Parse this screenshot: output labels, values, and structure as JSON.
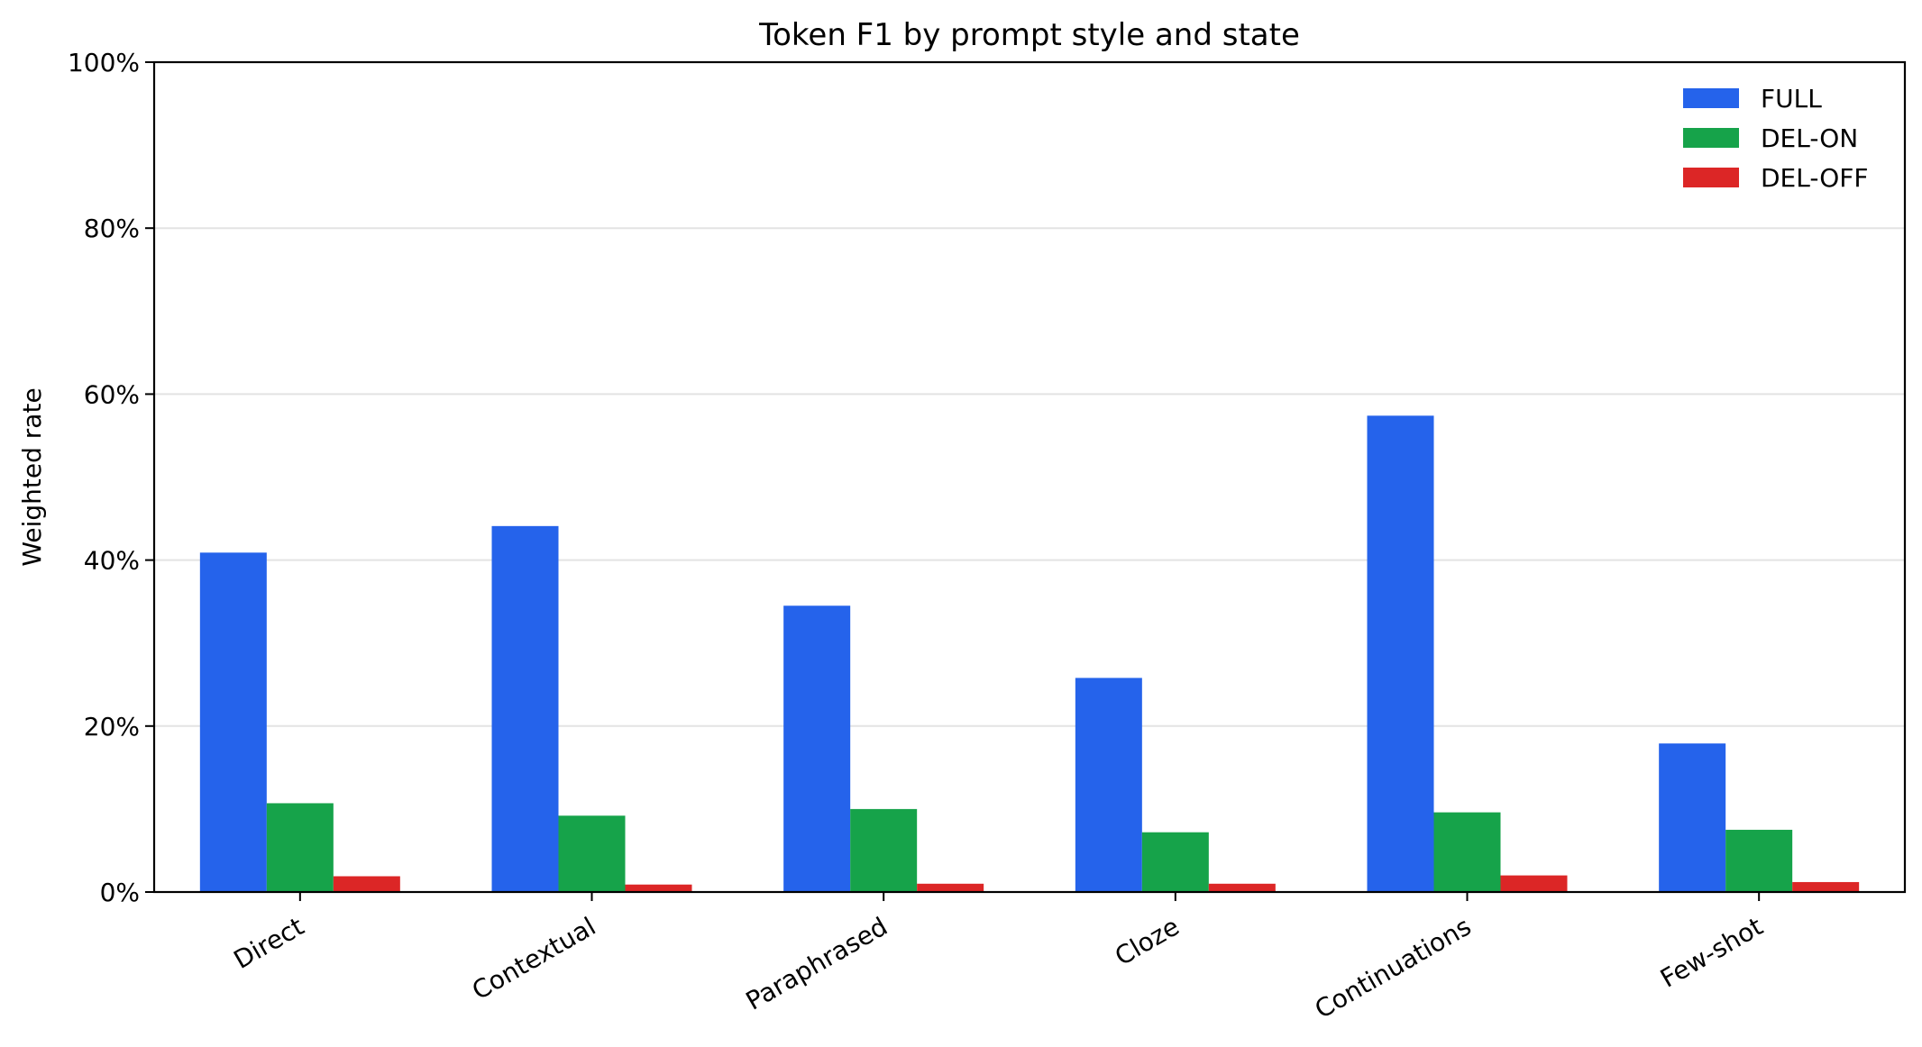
{
  "chart_data": {
    "type": "bar",
    "title": "Token F1 by prompt style and state",
    "xlabel": "",
    "ylabel": "Weighted rate",
    "ylim": [
      0,
      100
    ],
    "yticks": [
      0,
      20,
      40,
      60,
      80,
      100
    ],
    "ytick_labels": [
      "0%",
      "20%",
      "40%",
      "60%",
      "80%",
      "100%"
    ],
    "grid": "horizontal",
    "legend_position": "top-right",
    "categories": [
      "Direct",
      "Contextual",
      "Paraphrased",
      "Cloze",
      "Continuations",
      "Few-shot"
    ],
    "series": [
      {
        "name": "FULL",
        "color": "#2563eb",
        "values": [
          40.9,
          44.1,
          34.5,
          25.8,
          57.4,
          17.9
        ]
      },
      {
        "name": "DEL-ON",
        "color": "#16a34a",
        "values": [
          10.7,
          9.2,
          10.0,
          7.2,
          9.6,
          7.5
        ]
      },
      {
        "name": "DEL-OFF",
        "color": "#dc2626",
        "values": [
          1.9,
          0.9,
          1.0,
          1.0,
          2.0,
          1.2
        ]
      }
    ]
  }
}
